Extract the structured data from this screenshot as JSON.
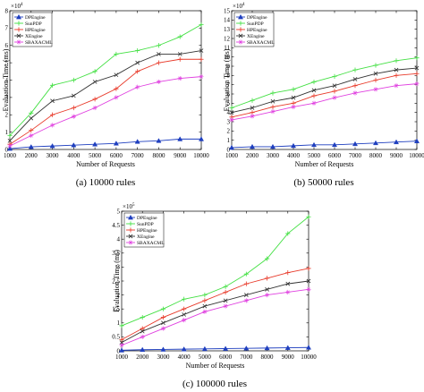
{
  "chart_data": [
    {
      "type": "line",
      "caption": "(a) 10000 rules",
      "xlabel": "Number of Requests",
      "ylabel": "Evaluation Time (ms)",
      "y_exponent": "10",
      "y_exponent_power": "4",
      "x": [
        1000,
        2000,
        3000,
        4000,
        5000,
        6000,
        7000,
        8000,
        9000,
        10000
      ],
      "x_ticks": [
        "1000",
        "2000",
        "3000",
        "4000",
        "5000",
        "6000",
        "7000",
        "8000",
        "9000",
        "10000"
      ],
      "ylim": [
        0,
        8
      ],
      "y_ticks": [
        "0",
        "1",
        "2",
        "3",
        "4",
        "5",
        "6",
        "7",
        "8"
      ],
      "legend_position": "top-left",
      "series": [
        {
          "name": "DPEngine",
          "color": "#1f3fbf",
          "marker": "triangle",
          "values": [
            0.05,
            0.15,
            0.2,
            0.25,
            0.3,
            0.35,
            0.45,
            0.5,
            0.6,
            0.6
          ]
        },
        {
          "name": "SunPDP",
          "color": "#44e044",
          "marker": "plus",
          "values": [
            0.8,
            2.1,
            3.7,
            4.0,
            4.5,
            5.5,
            5.7,
            6.0,
            6.5,
            7.2
          ]
        },
        {
          "name": "HPEngine",
          "color": "#e83a2a",
          "marker": "plus",
          "values": [
            0.3,
            1.1,
            2.0,
            2.4,
            2.9,
            3.5,
            4.5,
            5.0,
            5.2,
            5.2
          ]
        },
        {
          "name": "XEngine",
          "color": "#333333",
          "marker": "x",
          "values": [
            0.5,
            1.8,
            2.8,
            3.1,
            3.9,
            4.3,
            5.0,
            5.5,
            5.5,
            5.7
          ]
        },
        {
          "name": "SBAXACML",
          "color": "#e040e0",
          "marker": "star",
          "values": [
            0.2,
            0.8,
            1.4,
            1.9,
            2.4,
            3.0,
            3.6,
            3.9,
            4.1,
            4.2
          ]
        }
      ]
    },
    {
      "type": "line",
      "caption": "(b) 50000 rules",
      "xlabel": "Number of Requests",
      "ylabel": "Evaluation Time (ms)",
      "y_exponent": "10",
      "y_exponent_power": "4",
      "x": [
        1000,
        2000,
        3000,
        4000,
        5000,
        6000,
        7000,
        8000,
        9000,
        10000
      ],
      "x_ticks": [
        "1000",
        "2000",
        "3000",
        "4000",
        "5000",
        "6000",
        "7000",
        "8000",
        "9000",
        "10000"
      ],
      "ylim": [
        0,
        15
      ],
      "y_ticks": [
        "0",
        "1",
        "2",
        "3",
        "4",
        "5",
        "6",
        "7",
        "8",
        "9",
        "10",
        "11",
        "12",
        "13",
        "14",
        "15"
      ],
      "legend_position": "top-left",
      "series": [
        {
          "name": "DPEngine",
          "color": "#1f3fbf",
          "marker": "triangle",
          "values": [
            0.2,
            0.3,
            0.3,
            0.4,
            0.5,
            0.5,
            0.6,
            0.7,
            0.8,
            0.9
          ]
        },
        {
          "name": "SunPDP",
          "color": "#44e044",
          "marker": "plus",
          "values": [
            4.5,
            5.3,
            6.1,
            6.5,
            7.3,
            7.9,
            8.6,
            9.1,
            9.6,
            9.9
          ]
        },
        {
          "name": "HPEngine",
          "color": "#e83a2a",
          "marker": "plus",
          "values": [
            3.5,
            4.0,
            4.6,
            5.0,
            5.8,
            6.3,
            6.9,
            7.5,
            8.0,
            8.2
          ]
        },
        {
          "name": "XEngine",
          "color": "#333333",
          "marker": "x",
          "values": [
            4.0,
            4.5,
            5.2,
            5.6,
            6.4,
            6.9,
            7.6,
            8.2,
            8.6,
            8.8
          ]
        },
        {
          "name": "SBAXACML",
          "color": "#e040e0",
          "marker": "star",
          "values": [
            3.2,
            3.6,
            4.1,
            4.6,
            5.0,
            5.6,
            6.1,
            6.5,
            6.9,
            7.1
          ]
        }
      ]
    },
    {
      "type": "line",
      "caption": "(c) 100000 rules",
      "xlabel": "Number of Requests",
      "ylabel": "Evaluation Time (ms)",
      "y_exponent": "10",
      "y_exponent_power": "5",
      "x": [
        1000,
        2000,
        3000,
        4000,
        5000,
        6000,
        7000,
        8000,
        9000,
        10000
      ],
      "x_ticks": [
        "1000",
        "2000",
        "3000",
        "4000",
        "5000",
        "6000",
        "7000",
        "8000",
        "9000",
        "10000"
      ],
      "ylim": [
        0,
        5
      ],
      "y_ticks": [
        "0",
        "0.5",
        "1",
        "1.5",
        "2",
        "2.5",
        "3",
        "3.5",
        "4",
        "4.5",
        "5"
      ],
      "legend_position": "top-left",
      "series": [
        {
          "name": "DPEngine",
          "color": "#1f3fbf",
          "marker": "triangle",
          "values": [
            0.02,
            0.04,
            0.05,
            0.06,
            0.07,
            0.08,
            0.09,
            0.1,
            0.11,
            0.12
          ]
        },
        {
          "name": "SunPDP",
          "color": "#44e044",
          "marker": "plus",
          "values": [
            0.9,
            1.2,
            1.5,
            1.85,
            2.0,
            2.3,
            2.75,
            3.3,
            4.2,
            4.8
          ]
        },
        {
          "name": "HPEngine",
          "color": "#e83a2a",
          "marker": "plus",
          "values": [
            0.4,
            0.8,
            1.2,
            1.5,
            1.8,
            2.1,
            2.4,
            2.6,
            2.8,
            2.95
          ]
        },
        {
          "name": "XEngine",
          "color": "#333333",
          "marker": "x",
          "values": [
            0.3,
            0.7,
            1.0,
            1.3,
            1.6,
            1.8,
            2.0,
            2.2,
            2.4,
            2.5
          ]
        },
        {
          "name": "SBAXACML",
          "color": "#e040e0",
          "marker": "star",
          "values": [
            0.2,
            0.5,
            0.8,
            1.1,
            1.4,
            1.6,
            1.8,
            2.0,
            2.1,
            2.2
          ]
        }
      ]
    }
  ]
}
